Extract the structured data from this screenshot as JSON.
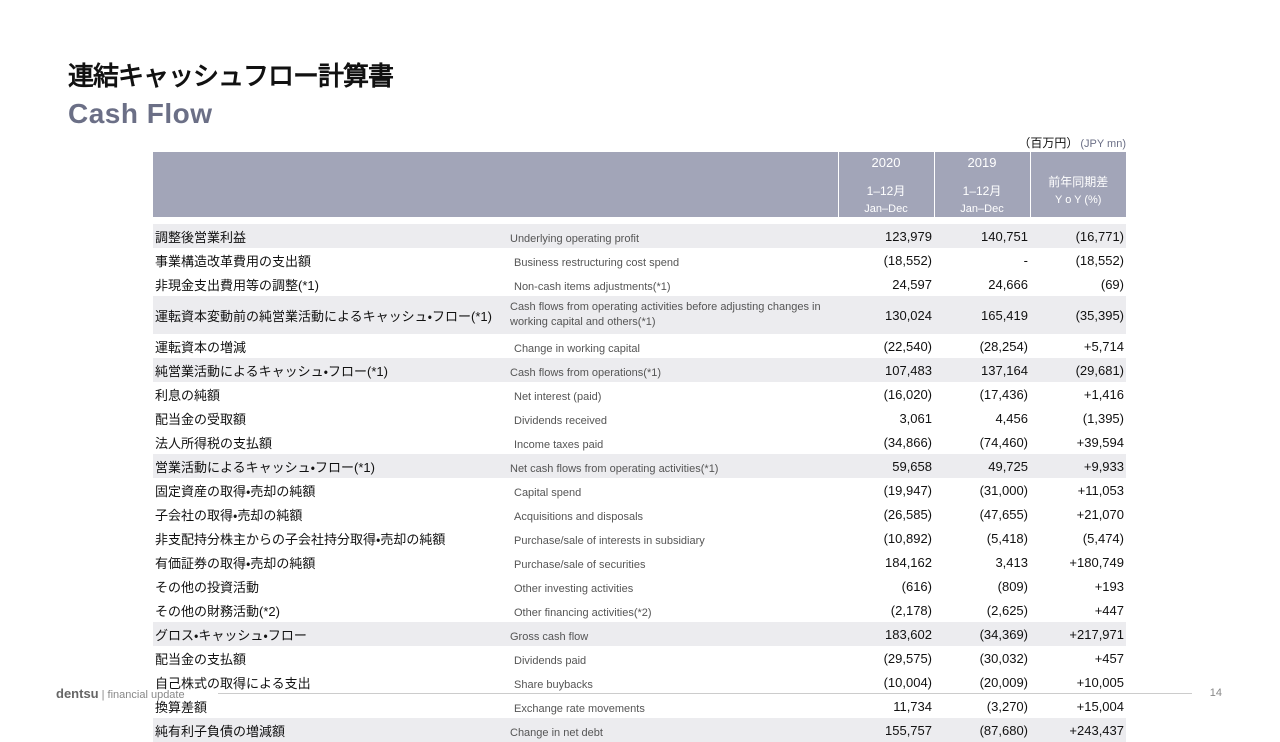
{
  "header": {
    "title_ja": "連結キャッシュフロー計算書",
    "title_en": "Cash Flow",
    "unit_ja": "（百万円）",
    "unit_en": "(JPY mn)"
  },
  "table": {
    "columns": [
      {
        "year": "2020",
        "period": "1–12月",
        "period_en": "Jan–Dec"
      },
      {
        "year": "2019",
        "period": "1–12月",
        "period_en": "Jan–Dec"
      },
      {
        "period": "前年同期差",
        "period_en": "Y o Y (%)"
      }
    ],
    "rows": [
      {
        "ja": "調整後営業利益",
        "en": "Underlying operating profit",
        "v2020": "123,979",
        "v2019": "140,751",
        "yoy": "(16,771)",
        "shaded": true
      },
      {
        "ja": "事業構造改革費用の支出額",
        "en": "Business restructuring cost spend",
        "v2020": "(18,552)",
        "v2019": "-",
        "yoy": "(18,552)",
        "shaded": false
      },
      {
        "ja": "非現金支出費用等の調整(*1)",
        "en": "Non-cash items adjustments(*1)",
        "v2020": "24,597",
        "v2019": "24,666",
        "yoy": "(69)",
        "shaded": false
      },
      {
        "ja": "運転資本変動前の純営業活動によるキャッシュ・フロー(*1)",
        "en": "Cash flows from operating activities before adjusting changes in working capital and others(*1)",
        "v2020": "130,024",
        "v2019": "165,419",
        "yoy": "(35,395)",
        "shaded": true
      },
      {
        "ja": "運転資本の増減",
        "en": "Change in working capital",
        "v2020": "(22,540)",
        "v2019": "(28,254)",
        "yoy": "+5,714",
        "shaded": false
      },
      {
        "ja": "純営業活動によるキャッシュ・フロー(*1)",
        "en": "Cash flows from operations(*1)",
        "v2020": "107,483",
        "v2019": "137,164",
        "yoy": "(29,681)",
        "shaded": true
      },
      {
        "ja": "利息の純額",
        "en": "Net interest (paid)",
        "v2020": "(16,020)",
        "v2019": "(17,436)",
        "yoy": "+1,416",
        "shaded": false
      },
      {
        "ja": "配当金の受取額",
        "en": "Dividends received",
        "v2020": "3,061",
        "v2019": "4,456",
        "yoy": "(1,395)",
        "shaded": false
      },
      {
        "ja": "法人所得税の支払額",
        "en": "Income taxes paid",
        "v2020": "(34,866)",
        "v2019": "(74,460)",
        "yoy": "+39,594",
        "shaded": false
      },
      {
        "ja": "営業活動によるキャッシュ・フロー(*1)",
        "en": "Net cash flows from operating activities(*1)",
        "v2020": "59,658",
        "v2019": "49,725",
        "yoy": "+9,933",
        "shaded": true
      },
      {
        "ja": "固定資産の取得・売却の純額",
        "en": "Capital spend",
        "v2020": "(19,947)",
        "v2019": "(31,000)",
        "yoy": "+11,053",
        "shaded": false
      },
      {
        "ja": "子会社の取得・売却の純額",
        "en": "Acquisitions and disposals",
        "v2020": "(26,585)",
        "v2019": "(47,655)",
        "yoy": "+21,070",
        "shaded": false
      },
      {
        "ja": "非支配持分株主からの子会社持分取得・売却の純額",
        "en": "Purchase/sale of interests in subsidiary",
        "v2020": "(10,892)",
        "v2019": "(5,418)",
        "yoy": "(5,474)",
        "shaded": false
      },
      {
        "ja": "有価証券の取得・売却の純額",
        "en": "Purchase/sale of securities",
        "v2020": "184,162",
        "v2019": "3,413",
        "yoy": "+180,749",
        "shaded": false
      },
      {
        "ja": "その他の投資活動",
        "en": "Other investing activities",
        "v2020": "(616)",
        "v2019": "(809)",
        "yoy": "+193",
        "shaded": false
      },
      {
        "ja": "その他の財務活動(*2)",
        "en": "Other financing activities(*2)",
        "v2020": "(2,178)",
        "v2019": "(2,625)",
        "yoy": "+447",
        "shaded": false
      },
      {
        "ja": "グロス・キャッシュ・フロー",
        "en": "Gross cash flow",
        "v2020": "183,602",
        "v2019": "(34,369)",
        "yoy": "+217,971",
        "shaded": true
      },
      {
        "ja": "配当金の支払額",
        "en": "Dividends paid",
        "v2020": "(29,575)",
        "v2019": "(30,032)",
        "yoy": "+457",
        "shaded": false
      },
      {
        "ja": "自己株式の取得による支出",
        "en": "Share buybacks",
        "v2020": "(10,004)",
        "v2019": "(20,009)",
        "yoy": "+10,005",
        "shaded": false
      },
      {
        "ja": "換算差額",
        "en": "Exchange rate movements",
        "v2020": "11,734",
        "v2019": "(3,270)",
        "yoy": "+15,004",
        "shaded": false
      },
      {
        "ja": "純有利子負債の増減額",
        "en": "Change in net debt",
        "v2020": "155,757",
        "v2019": "(87,680)",
        "yoy": "+243,437",
        "shaded": true
      }
    ]
  },
  "footer": {
    "brand": "dentsu",
    "text": "| financial update",
    "page": "14"
  }
}
